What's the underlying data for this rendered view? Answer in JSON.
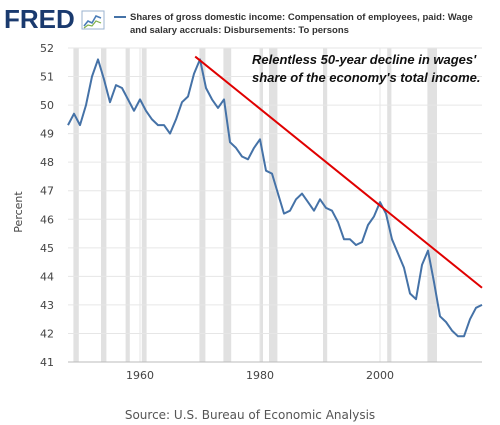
{
  "header": {
    "logo": "FRED",
    "legend_line1": "Shares of gross domestic income: Compensation of employees, paid: Wage",
    "legend_line2": "and salary accruals: Disbursements: To persons"
  },
  "annotation": {
    "line1": "Relentless 50-year decline in wages'",
    "line2": "share of the economy's total income."
  },
  "footer": {
    "source": "Source: U.S. Bureau of Economic Analysis"
  },
  "colors": {
    "series": "#4572a7",
    "trend": "#e00000",
    "recession": "#e1e1e1",
    "grid": "#e6e6e6"
  },
  "chart_data": {
    "type": "line",
    "ylabel": "Percent",
    "xlim": [
      1948,
      2017
    ],
    "ylim": [
      41,
      52
    ],
    "x_ticks": [
      "1960",
      "1980",
      "2000"
    ],
    "x_tick_values": [
      1960,
      1980,
      2000
    ],
    "y_ticks": [
      41,
      42,
      43,
      44,
      45,
      46,
      47,
      48,
      49,
      50,
      51,
      52
    ],
    "recessions": [
      [
        1948.9,
        1949.8
      ],
      [
        1953.5,
        1954.4
      ],
      [
        1957.6,
        1958.3
      ],
      [
        1960.3,
        1961.1
      ],
      [
        1969.9,
        1970.9
      ],
      [
        1973.9,
        1975.2
      ],
      [
        1980.0,
        1980.5
      ],
      [
        1981.5,
        1982.9
      ],
      [
        1990.5,
        1991.2
      ],
      [
        2001.2,
        2001.9
      ],
      [
        2007.9,
        2009.5
      ]
    ],
    "series": [
      {
        "x": [
          1948,
          1949,
          1950,
          1951,
          1952,
          1953,
          1954,
          1955,
          1956,
          1957,
          1958,
          1959,
          1960,
          1961,
          1962,
          1963,
          1964,
          1965,
          1966,
          1967,
          1968,
          1969,
          1970,
          1971,
          1972,
          1973,
          1974,
          1975,
          1976,
          1977,
          1978,
          1979,
          1980,
          1981,
          1982,
          1983,
          1984,
          1985,
          1986,
          1987,
          1988,
          1989,
          1990,
          1991,
          1992,
          1993,
          1994,
          1995,
          1996,
          1997,
          1998,
          1999,
          2000,
          2001,
          2002,
          2003,
          2004,
          2005,
          2006,
          2007,
          2008,
          2009,
          2010,
          2011,
          2012,
          2013,
          2014,
          2015,
          2016,
          2017
        ],
        "y": [
          49.3,
          49.7,
          49.3,
          50.0,
          51.0,
          51.6,
          50.9,
          50.1,
          50.7,
          50.6,
          50.2,
          49.8,
          50.2,
          49.8,
          49.5,
          49.3,
          49.3,
          49.0,
          49.5,
          50.1,
          50.3,
          51.1,
          51.6,
          50.6,
          50.2,
          49.9,
          50.2,
          48.7,
          48.5,
          48.2,
          48.1,
          48.5,
          48.8,
          47.7,
          47.6,
          46.9,
          46.2,
          46.3,
          46.7,
          46.9,
          46.6,
          46.3,
          46.7,
          46.4,
          46.3,
          45.9,
          45.3,
          45.3,
          45.1,
          45.2,
          45.8,
          46.1,
          46.6,
          46.2,
          45.3,
          44.8,
          44.3,
          43.4,
          43.2,
          44.4,
          44.9,
          43.8,
          42.6,
          42.4,
          42.1,
          41.9,
          41.9,
          42.5,
          42.9,
          43.0
        ]
      }
    ],
    "trendline": {
      "x": [
        1969.2,
        2017
      ],
      "y": [
        51.7,
        43.6
      ]
    }
  }
}
